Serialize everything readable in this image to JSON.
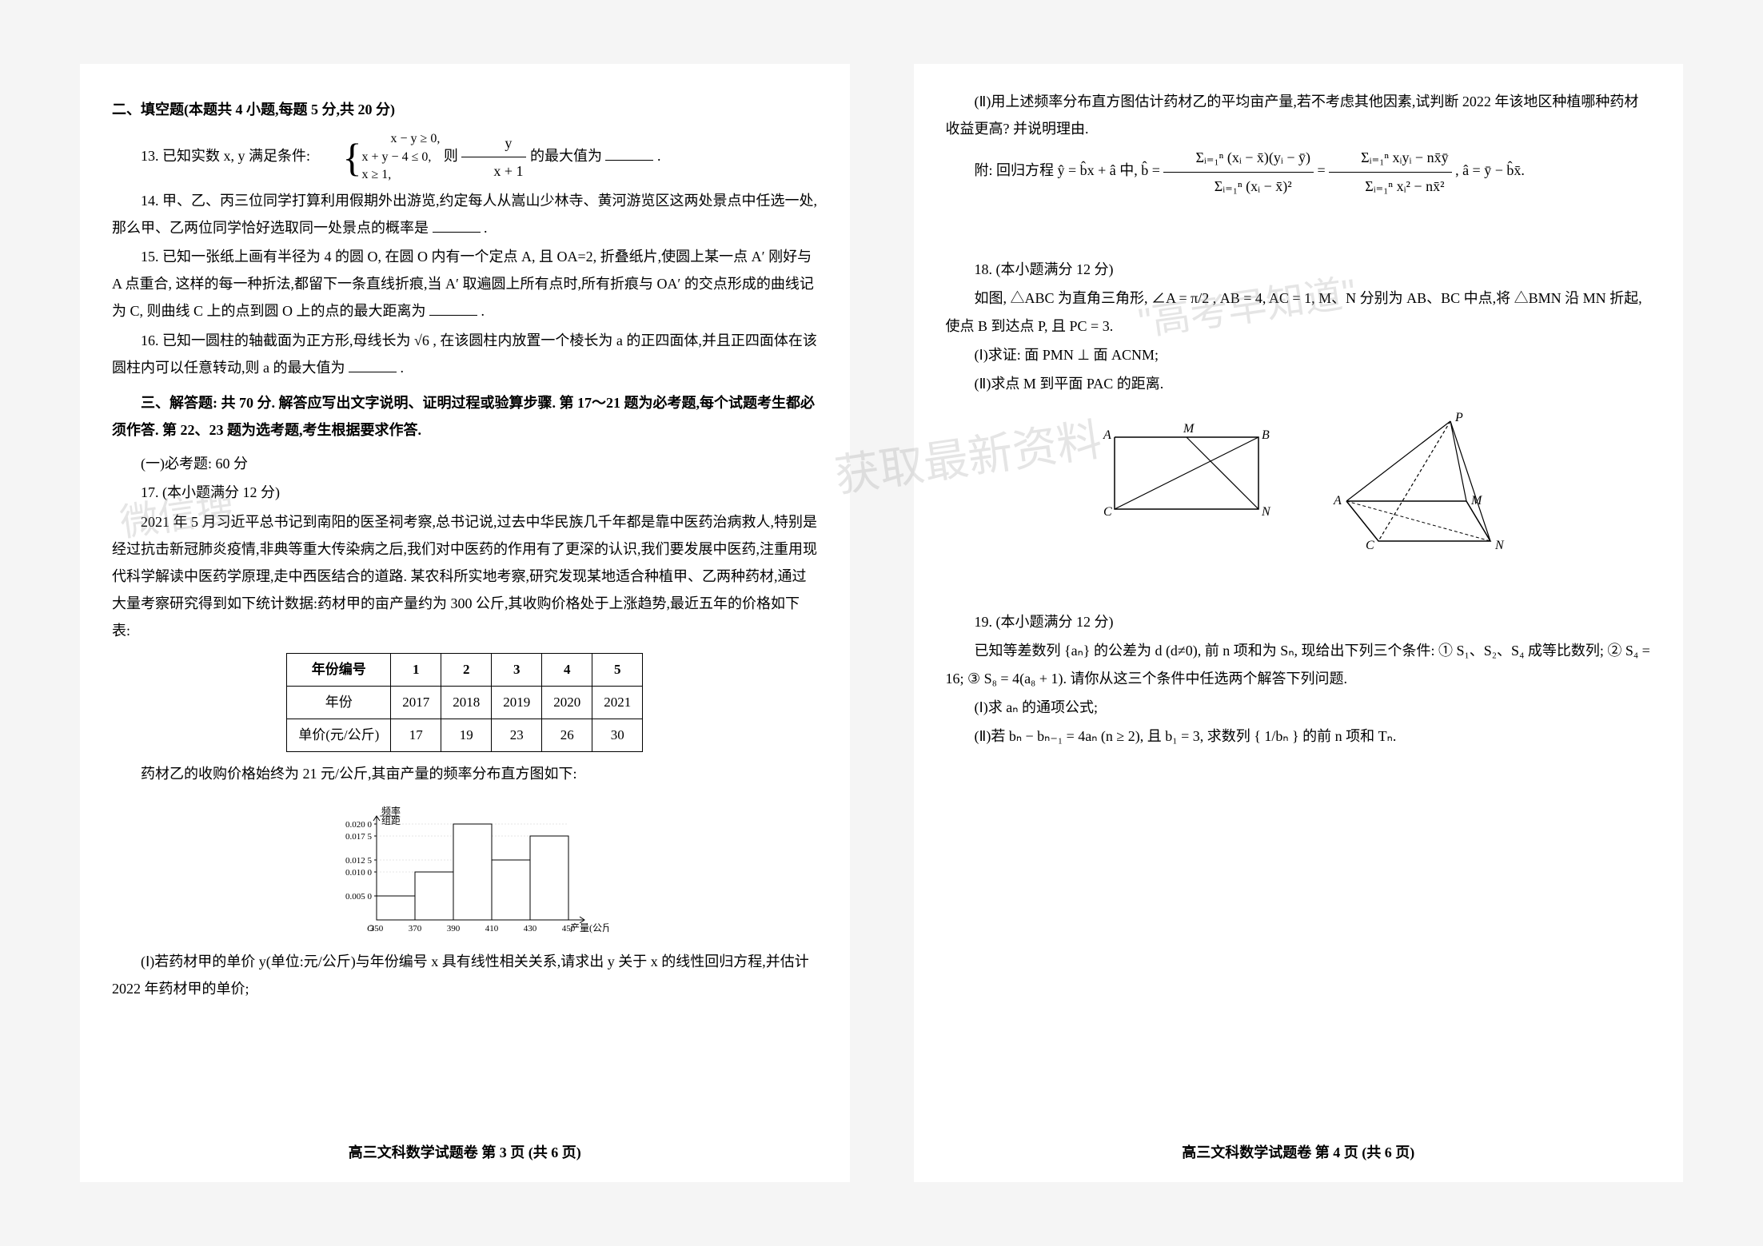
{
  "left": {
    "sec2_title": "二、填空题(本题共 4 小题,每题 5 分,共 20 分)",
    "q13_a": "13. 已知实数 x, y 满足条件:",
    "q13_sys1": "x − y ≥ 0,",
    "q13_sys2": "x + y − 4 ≤ 0,",
    "q13_sys3": "x ≥ 1,",
    "q13_b1": " 则 ",
    "q13_frac_num": "y",
    "q13_frac_den": "x + 1",
    "q13_b2": " 的最大值为 ",
    "q13_end": ".",
    "q14": "14. 甲、乙、丙三位同学打算利用假期外出游览,约定每人从嵩山少林寺、黄河游览区这两处景点中任选一处,那么甲、乙两位同学恰好选取同一处景点的概率是",
    "q14_end": ".",
    "q15": "15. 已知一张纸上画有半径为 4 的圆 O, 在圆 O 内有一个定点 A, 且 OA=2, 折叠纸片,使圆上某一点 A′ 刚好与 A 点重合, 这样的每一种折法,都留下一条直线折痕,当 A′ 取遍圆上所有点时,所有折痕与 OA′ 的交点形成的曲线记为 C, 则曲线 C 上的点到圆 O 上的点的最大距离为",
    "q15_end": ".",
    "q16": "16. 已知一圆柱的轴截面为正方形,母线长为 √6 , 在该圆柱内放置一个棱长为 a 的正四面体,并且正四面体在该圆柱内可以任意转动,则 a 的最大值为",
    "q16_end": ".",
    "sec3_title": "三、解答题: 共 70 分. 解答应写出文字说明、证明过程或验算步骤. 第 17～21 题为必考题,每个试题考生都必须作答. 第 22、23 题为选考题,考生根据要求作答.",
    "sub1": "(一)必考题: 60 分",
    "q17_title": "17. (本小题满分 12 分)",
    "q17_p1": "2021 年 5 月习近平总书记到南阳的医圣祠考察,总书记说,过去中华民族几千年都是靠中医药治病救人,特别是经过抗击新冠肺炎疫情,非典等重大传染病之后,我们对中医药的作用有了更深的认识,我们要发展中医药,注重用现代科学解读中医药学原理,走中西医结合的道路. 某农科所实地考察,研究发现某地适合种植甲、乙两种药材,通过大量考察研究得到如下统计数据:药材甲的亩产量约为 300 公斤,其收购价格处于上涨趋势,最近五年的价格如下表:",
    "table": {
      "headers": [
        "年份编号",
        "1",
        "2",
        "3",
        "4",
        "5"
      ],
      "row_year_label": "年份",
      "row_year": [
        "2017",
        "2018",
        "2019",
        "2020",
        "2021"
      ],
      "row_price_label": "单价(元/公斤)",
      "row_price": [
        "17",
        "19",
        "23",
        "26",
        "30"
      ]
    },
    "q17_p2": "药材乙的收购价格始终为 21 元/公斤,其亩产量的频率分布直方图如下:",
    "hist": {
      "y_label": "频率\n组距",
      "x_label": "产量(公斤)",
      "x_ticks": [
        "350",
        "370",
        "390",
        "410",
        "430",
        "450"
      ],
      "y_ticks": [
        "0.005 0",
        "0.010 0",
        "0.012 5",
        "0.017 5",
        "0.020 0"
      ],
      "bars": [
        0.005,
        0.01,
        0.02,
        0.0125,
        0.0175
      ],
      "bar_color": "#ffffff",
      "border_color": "#000000",
      "bg": "#ffffff"
    },
    "q17_p3": "(Ⅰ)若药材甲的单价 y(单位:元/公斤)与年份编号 x 具有线性相关关系,请求出 y 关于 x 的线性回归方程,并估计 2022 年药材甲的单价;",
    "footer": "高三文科数学试题卷  第 3 页 (共 6 页)"
  },
  "right": {
    "q17_p4": "(Ⅱ)用上述频率分布直方图估计药材乙的平均亩产量,若不考虑其他因素,试判断 2022 年该地区种植哪种药材收益更高? 并说明理由.",
    "q17_formula_pre": "附: 回归方程 ŷ = b̂x + â 中, b̂ = ",
    "q17_formula_frac1_num": "Σᵢ₌₁ⁿ (xᵢ − x̄)(yᵢ − ȳ)",
    "q17_formula_frac1_den": "Σᵢ₌₁ⁿ (xᵢ − x̄)²",
    "q17_formula_mid": " = ",
    "q17_formula_frac2_num": "Σᵢ₌₁ⁿ xᵢyᵢ − nx̄ȳ",
    "q17_formula_frac2_den": "Σᵢ₌₁ⁿ xᵢ² − nx̄²",
    "q17_formula_post": " , â = ȳ − b̂x̄.",
    "q18_title": "18. (本小题满分 12 分)",
    "q18_p1": "如图, △ABC 为直角三角形, ∠A = π/2 , AB = 4, AC = 1, M、N 分别为 AB、BC 中点,将 △BMN 沿 MN 折起,使点 B 到达点 P, 且 PC = 3.",
    "q18_i": "(Ⅰ)求证: 面 PMN ⊥ 面 ACNM;",
    "q18_ii": "(Ⅱ)求点 M 到平面 PAC 的距离.",
    "geom": {
      "left_labels": {
        "A": "A",
        "B": "B",
        "C": "C",
        "M": "M",
        "N": "N"
      },
      "right_labels": {
        "A": "A",
        "C": "C",
        "M": "M",
        "N": "N",
        "P": "P"
      }
    },
    "q19_title": "19. (本小题满分 12 分)",
    "q19_p1": "已知等差数列 {aₙ} 的公差为 d (d≠0), 前 n 项和为 Sₙ, 现给出下列三个条件: ① S₁、S₂、S₄ 成等比数列; ② S₄ = 16; ③ S₈ = 4(a₈ + 1). 请你从这三个条件中任选两个解答下列问题.",
    "q19_i": "(Ⅰ)求 aₙ 的通项公式;",
    "q19_ii": "(Ⅱ)若 bₙ − bₙ₋₁ = 4aₙ (n ≥ 2), 且 b₁ = 3, 求数列 { 1/bₙ } 的前 n 项和 Tₙ.",
    "footer": "高三文科数学试题卷  第 4 页 (共 6 页)",
    "watermark1": "\"高考早知道\"",
    "watermark2": "获取最新资料"
  }
}
